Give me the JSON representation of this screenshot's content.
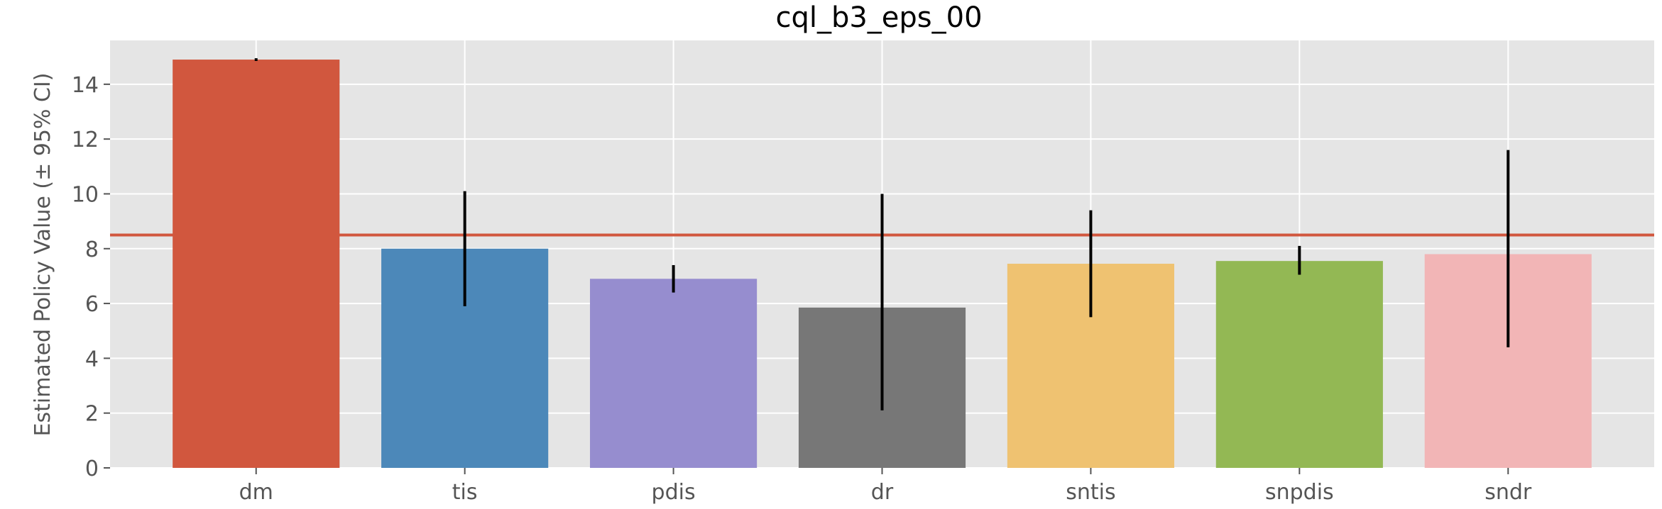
{
  "chart_data": {
    "type": "bar",
    "title": "cql_b3_eps_00",
    "xlabel": "",
    "ylabel": "Estimated Policy Value (± 95% CI)",
    "categories": [
      "dm",
      "tis",
      "pdis",
      "dr",
      "sntis",
      "snpdis",
      "sndr"
    ],
    "values": [
      14.9,
      8.0,
      6.9,
      5.85,
      7.45,
      7.55,
      7.8
    ],
    "ci_lower": [
      14.85,
      5.9,
      6.4,
      2.1,
      5.5,
      7.05,
      4.4
    ],
    "ci_upper": [
      14.95,
      10.1,
      7.4,
      10.0,
      9.4,
      8.1,
      11.6
    ],
    "reference_line": 8.5,
    "ylim": [
      0,
      15.6
    ],
    "yticks": [
      0,
      2,
      4,
      6,
      8,
      10,
      12,
      14
    ],
    "grid": true,
    "colors": [
      "#d1573e",
      "#4c88b9",
      "#968dcf",
      "#777777",
      "#efc271",
      "#93b854",
      "#f2b5b6"
    ],
    "reference_line_color": "#d1573e",
    "plot_background": "#e5e5e5"
  }
}
